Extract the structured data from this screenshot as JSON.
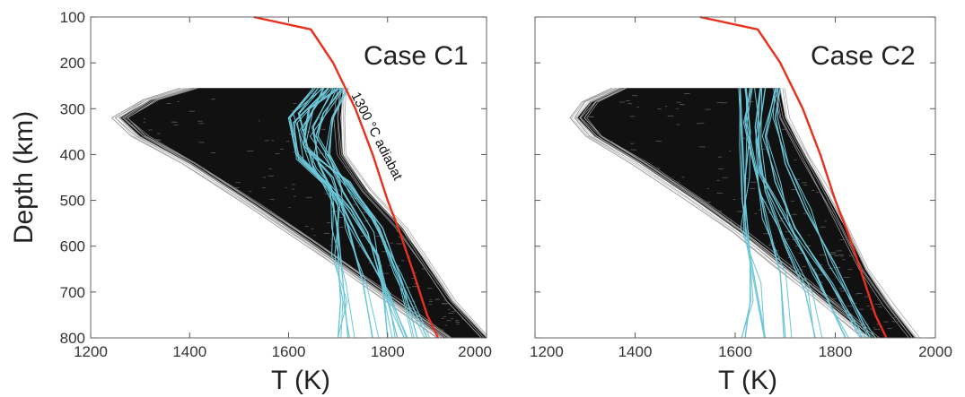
{
  "figure": {
    "ylabel": "Depth (km)",
    "xlabel": "T (K)"
  },
  "chart_data": [
    {
      "type": "line",
      "title": "Case C1",
      "xlabel": "T (K)",
      "ylabel": "Depth (km)",
      "xlim": [
        1200,
        2000
      ],
      "ylim": [
        100,
        800
      ],
      "y_inverted": true,
      "xticks": [
        1200,
        1400,
        1600,
        1800,
        2000
      ],
      "yticks": [
        100,
        200,
        300,
        400,
        500,
        600,
        700,
        800
      ],
      "grid": false,
      "annotation": "1300 °C adiabat",
      "colors": {
        "adiabat": "#e8301c",
        "ensemble": "#111111",
        "selected": "#6cc6d8"
      },
      "series": [
        {
          "name": "1300 °C adiabat",
          "role": "adiabat",
          "points": [
            [
              1530,
              100
            ],
            [
              1645,
              127
            ],
            [
              1690,
              200
            ],
            [
              1735,
              300
            ],
            [
              1770,
              400
            ],
            [
              1800,
              500
            ],
            [
              1825,
              570
            ],
            [
              1850,
              650
            ],
            [
              1880,
              750
            ],
            [
              1902,
              800
            ]
          ]
        },
        {
          "role": "ensemble-lower",
          "points": [
            [
              1400,
              255
            ],
            [
              1320,
              280
            ],
            [
              1260,
              320
            ],
            [
              1300,
              360
            ],
            [
              1400,
              420
            ],
            [
              1530,
              510
            ],
            [
              1640,
              590
            ],
            [
              1720,
              650
            ],
            [
              1810,
              720
            ],
            [
              1915,
              800
            ]
          ]
        },
        {
          "role": "ensemble-upper",
          "points": [
            [
              1710,
              255
            ],
            [
              1705,
              320
            ],
            [
              1710,
              400
            ],
            [
              1760,
              480
            ],
            [
              1830,
              560
            ],
            [
              1880,
              640
            ],
            [
              1930,
              720
            ],
            [
              2000,
              800
            ]
          ]
        },
        {
          "role": "selected-profiles",
          "profiles": [
            [
              [
                1650,
                255
              ],
              [
                1600,
                320
              ],
              [
                1615,
                400
              ],
              [
                1680,
                470
              ],
              [
                1700,
                560
              ],
              [
                1710,
                680
              ],
              [
                1720,
                800
              ]
            ],
            [
              [
                1700,
                255
              ],
              [
                1640,
                300
              ],
              [
                1630,
                380
              ],
              [
                1690,
                450
              ],
              [
                1720,
                560
              ],
              [
                1750,
                680
              ],
              [
                1770,
                800
              ]
            ],
            [
              [
                1680,
                255
              ],
              [
                1610,
                330
              ],
              [
                1620,
                410
              ],
              [
                1700,
                490
              ],
              [
                1740,
                580
              ],
              [
                1800,
                700
              ],
              [
                1840,
                800
              ]
            ],
            [
              [
                1720,
                255
              ],
              [
                1690,
                320
              ],
              [
                1680,
                400
              ],
              [
                1710,
                480
              ],
              [
                1760,
                570
              ],
              [
                1790,
                690
              ],
              [
                1800,
                800
              ]
            ],
            [
              [
                1660,
                255
              ],
              [
                1620,
                310
              ],
              [
                1640,
                390
              ],
              [
                1720,
                460
              ],
              [
                1790,
                560
              ],
              [
                1830,
                680
              ],
              [
                1860,
                800
              ]
            ],
            [
              [
                1690,
                255
              ],
              [
                1650,
                340
              ],
              [
                1660,
                420
              ],
              [
                1700,
                510
              ],
              [
                1700,
                620
              ],
              [
                1705,
                720
              ],
              [
                1700,
                800
              ]
            ],
            [
              [
                1710,
                255
              ],
              [
                1670,
                310
              ],
              [
                1655,
                360
              ],
              [
                1700,
                440
              ],
              [
                1770,
                540
              ],
              [
                1820,
                660
              ],
              [
                1880,
                800
              ]
            ],
            [
              [
                1670,
                255
              ],
              [
                1630,
                350
              ],
              [
                1650,
                430
              ],
              [
                1720,
                520
              ],
              [
                1780,
                620
              ],
              [
                1800,
                720
              ],
              [
                1820,
                800
              ]
            ]
          ]
        }
      ]
    },
    {
      "type": "line",
      "title": "Case C2",
      "xlabel": "T (K)",
      "ylabel": "",
      "xlim": [
        1200,
        2000
      ],
      "ylim": [
        100,
        800
      ],
      "y_inverted": true,
      "xticks": [
        1200,
        1400,
        1600,
        1800,
        2000
      ],
      "yticks": [
        100,
        200,
        300,
        400,
        500,
        600,
        700,
        800
      ],
      "grid": false,
      "colors": {
        "adiabat": "#e8301c",
        "ensemble": "#111111",
        "selected": "#6cc6d8"
      },
      "series": [
        {
          "role": "adiabat",
          "points": [
            [
              1530,
              100
            ],
            [
              1645,
              127
            ],
            [
              1690,
              200
            ],
            [
              1735,
              300
            ],
            [
              1770,
              400
            ],
            [
              1800,
              500
            ],
            [
              1825,
              570
            ],
            [
              1850,
              650
            ],
            [
              1880,
              750
            ],
            [
              1902,
              800
            ]
          ]
        },
        {
          "role": "ensemble-lower",
          "points": [
            [
              1370,
              255
            ],
            [
              1310,
              285
            ],
            [
              1285,
              320
            ],
            [
              1320,
              360
            ],
            [
              1410,
              420
            ],
            [
              1520,
              500
            ],
            [
              1610,
              570
            ],
            [
              1690,
              640
            ],
            [
              1780,
              720
            ],
            [
              1870,
              800
            ]
          ]
        },
        {
          "role": "ensemble-upper",
          "points": [
            [
              1690,
              255
            ],
            [
              1700,
              320
            ],
            [
              1740,
              400
            ],
            [
              1780,
              480
            ],
            [
              1820,
              560
            ],
            [
              1860,
              650
            ],
            [
              1910,
              730
            ],
            [
              1960,
              800
            ]
          ]
        },
        {
          "role": "selected-profiles",
          "profiles": [
            [
              [
                1620,
                255
              ],
              [
                1630,
                350
              ],
              [
                1620,
                450
              ],
              [
                1620,
                560
              ],
              [
                1640,
                680
              ],
              [
                1660,
                800
              ]
            ],
            [
              [
                1650,
                255
              ],
              [
                1640,
                340
              ],
              [
                1650,
                440
              ],
              [
                1700,
                540
              ],
              [
                1760,
                660
              ],
              [
                1820,
                800
              ]
            ],
            [
              [
                1680,
                255
              ],
              [
                1660,
                360
              ],
              [
                1680,
                460
              ],
              [
                1720,
                560
              ],
              [
                1790,
                680
              ],
              [
                1850,
                800
              ]
            ],
            [
              [
                1630,
                255
              ],
              [
                1620,
                330
              ],
              [
                1640,
                430
              ],
              [
                1660,
                540
              ],
              [
                1690,
                660
              ],
              [
                1700,
                800
              ]
            ],
            [
              [
                1690,
                255
              ],
              [
                1680,
                320
              ],
              [
                1700,
                420
              ],
              [
                1740,
                520
              ],
              [
                1800,
                640
              ],
              [
                1870,
                800
              ]
            ],
            [
              [
                1610,
                255
              ],
              [
                1615,
                380
              ],
              [
                1620,
                500
              ],
              [
                1630,
                620
              ],
              [
                1630,
                720
              ],
              [
                1620,
                800
              ]
            ],
            [
              [
                1660,
                255
              ],
              [
                1645,
                370
              ],
              [
                1660,
                480
              ],
              [
                1700,
                600
              ],
              [
                1740,
                700
              ],
              [
                1760,
                800
              ]
            ]
          ]
        }
      ]
    }
  ]
}
